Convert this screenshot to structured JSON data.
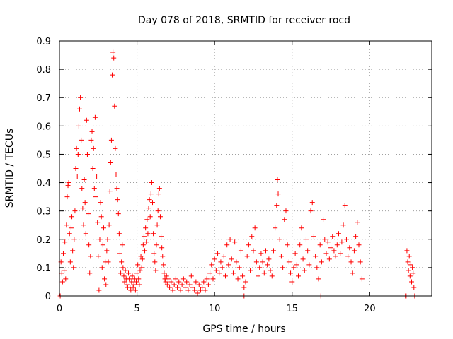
{
  "chart_data": {
    "type": "scatter",
    "title": "Day 078 of 2018, SRMTID for receiver rocd",
    "xlabel": "GPS time / hours",
    "ylabel": "SRMTID / TECUs",
    "xlim": [
      0,
      24
    ],
    "ylim": [
      0,
      0.9
    ],
    "xticks": [
      0,
      5,
      10,
      15,
      20
    ],
    "yticks": [
      0,
      0.1,
      0.2,
      0.3,
      0.4,
      0.5,
      0.6,
      0.7,
      0.8,
      0.9
    ],
    "xtick_labels": [
      "0",
      "5",
      "10",
      "15",
      "20"
    ],
    "ytick_labels": [
      "0",
      "0.1",
      "0.2",
      "0.3",
      "0.4",
      "0.5",
      "0.6",
      "0.7",
      "0.8",
      "0.9"
    ],
    "grid": true,
    "marker": "+",
    "color": "#ff0000",
    "series": [
      {
        "name": "SRMTID",
        "points": [
          [
            0.05,
            0.0
          ],
          [
            0.1,
            0.12
          ],
          [
            0.15,
            0.08
          ],
          [
            0.2,
            0.05
          ],
          [
            0.25,
            0.15
          ],
          [
            0.3,
            0.09
          ],
          [
            0.35,
            0.19
          ],
          [
            0.4,
            0.06
          ],
          [
            0.45,
            0.25
          ],
          [
            0.5,
            0.35
          ],
          [
            0.55,
            0.39
          ],
          [
            0.6,
            0.4
          ],
          [
            0.65,
            0.22
          ],
          [
            0.7,
            0.12
          ],
          [
            0.75,
            0.24
          ],
          [
            0.8,
            0.28
          ],
          [
            0.85,
            0.16
          ],
          [
            0.9,
            0.1
          ],
          [
            0.95,
            0.2
          ],
          [
            1.0,
            0.3
          ],
          [
            1.05,
            0.45
          ],
          [
            1.1,
            0.52
          ],
          [
            1.15,
            0.42
          ],
          [
            1.2,
            0.5
          ],
          [
            1.25,
            0.6
          ],
          [
            1.3,
            0.66
          ],
          [
            1.35,
            0.7
          ],
          [
            1.4,
            0.55
          ],
          [
            1.45,
            0.38
          ],
          [
            1.5,
            0.31
          ],
          [
            1.55,
            0.25
          ],
          [
            1.6,
            0.41
          ],
          [
            1.65,
            0.33
          ],
          [
            1.7,
            0.22
          ],
          [
            1.75,
            0.62
          ],
          [
            1.8,
            0.5
          ],
          [
            1.85,
            0.29
          ],
          [
            1.9,
            0.18
          ],
          [
            1.95,
            0.08
          ],
          [
            2.0,
            0.14
          ],
          [
            2.05,
            0.55
          ],
          [
            2.1,
            0.58
          ],
          [
            2.15,
            0.45
          ],
          [
            2.2,
            0.52
          ],
          [
            2.25,
            0.38
          ],
          [
            2.3,
            0.63
          ],
          [
            2.35,
            0.35
          ],
          [
            2.4,
            0.42
          ],
          [
            2.45,
            0.26
          ],
          [
            2.5,
            0.14
          ],
          [
            2.55,
            0.02
          ],
          [
            2.6,
            0.2
          ],
          [
            2.65,
            0.33
          ],
          [
            2.7,
            0.28
          ],
          [
            2.75,
            0.1
          ],
          [
            2.8,
            0.18
          ],
          [
            2.85,
            0.24
          ],
          [
            2.9,
            0.06
          ],
          [
            2.95,
            0.12
          ],
          [
            3.0,
            0.04
          ],
          [
            3.05,
            0.16
          ],
          [
            3.1,
            0.2
          ],
          [
            3.15,
            0.12
          ],
          [
            3.2,
            0.25
          ],
          [
            3.25,
            0.37
          ],
          [
            3.3,
            0.47
          ],
          [
            3.35,
            0.55
          ],
          [
            3.4,
            0.78
          ],
          [
            3.45,
            0.86
          ],
          [
            3.5,
            0.84
          ],
          [
            3.55,
            0.67
          ],
          [
            3.6,
            0.52
          ],
          [
            3.65,
            0.43
          ],
          [
            3.7,
            0.38
          ],
          [
            3.75,
            0.34
          ],
          [
            3.8,
            0.29
          ],
          [
            3.85,
            0.22
          ],
          [
            3.9,
            0.15
          ],
          [
            3.95,
            0.08
          ],
          [
            4.0,
            0.12
          ],
          [
            4.05,
            0.18
          ],
          [
            4.1,
            0.1
          ],
          [
            4.15,
            0.07
          ],
          [
            4.2,
            0.05
          ],
          [
            4.25,
            0.09
          ],
          [
            4.3,
            0.06
          ],
          [
            4.35,
            0.04
          ],
          [
            4.4,
            0.03
          ],
          [
            4.45,
            0.08
          ],
          [
            4.5,
            0.06
          ],
          [
            4.55,
            0.03
          ],
          [
            4.6,
            0.02
          ],
          [
            4.65,
            0.05
          ],
          [
            4.7,
            0.07
          ],
          [
            4.75,
            0.03
          ],
          [
            4.8,
            0.04
          ],
          [
            4.85,
            0.06
          ],
          [
            4.9,
            0.02
          ],
          [
            4.95,
            0.05
          ],
          [
            5.0,
            0.08
          ],
          [
            5.05,
            0.11
          ],
          [
            5.1,
            0.06
          ],
          [
            5.15,
            0.04
          ],
          [
            5.2,
            0.09
          ],
          [
            5.25,
            0.14
          ],
          [
            5.3,
            0.1
          ],
          [
            5.35,
            0.13
          ],
          [
            5.4,
            0.18
          ],
          [
            5.45,
            0.21
          ],
          [
            5.5,
            0.16
          ],
          [
            5.55,
            0.24
          ],
          [
            5.6,
            0.19
          ],
          [
            5.65,
            0.27
          ],
          [
            5.7,
            0.22
          ],
          [
            5.75,
            0.31
          ],
          [
            5.8,
            0.34
          ],
          [
            5.85,
            0.28
          ],
          [
            5.9,
            0.36
          ],
          [
            5.95,
            0.4
          ],
          [
            6.0,
            0.33
          ],
          [
            6.05,
            0.22
          ],
          [
            6.1,
            0.15
          ],
          [
            6.15,
            0.12
          ],
          [
            6.2,
            0.09
          ],
          [
            6.25,
            0.18
          ],
          [
            6.3,
            0.25
          ],
          [
            6.35,
            0.3
          ],
          [
            6.4,
            0.36
          ],
          [
            6.45,
            0.38
          ],
          [
            6.5,
            0.28
          ],
          [
            6.55,
            0.21
          ],
          [
            6.6,
            0.17
          ],
          [
            6.65,
            0.14
          ],
          [
            6.7,
            0.11
          ],
          [
            6.75,
            0.08
          ],
          [
            6.8,
            0.06
          ],
          [
            6.85,
            0.05
          ],
          [
            6.9,
            0.07
          ],
          [
            6.95,
            0.04
          ],
          [
            7.0,
            0.06
          ],
          [
            7.1,
            0.03
          ],
          [
            7.2,
            0.05
          ],
          [
            7.3,
            0.02
          ],
          [
            7.4,
            0.04
          ],
          [
            7.5,
            0.06
          ],
          [
            7.6,
            0.03
          ],
          [
            7.7,
            0.05
          ],
          [
            7.8,
            0.02
          ],
          [
            7.9,
            0.04
          ],
          [
            8.0,
            0.06
          ],
          [
            8.1,
            0.03
          ],
          [
            8.2,
            0.05
          ],
          [
            8.3,
            0.02
          ],
          [
            8.4,
            0.04
          ],
          [
            8.5,
            0.07
          ],
          [
            8.6,
            0.03
          ],
          [
            8.7,
            0.02
          ],
          [
            8.8,
            0.05
          ],
          [
            8.9,
            0.01
          ],
          [
            9.0,
            0.04
          ],
          [
            9.1,
            0.02
          ],
          [
            9.2,
            0.03
          ],
          [
            9.3,
            0.05
          ],
          [
            9.4,
            0.02
          ],
          [
            9.5,
            0.06
          ],
          [
            9.6,
            0.04
          ],
          [
            9.7,
            0.08
          ],
          [
            9.8,
            0.11
          ],
          [
            9.9,
            0.06
          ],
          [
            10.0,
            0.13
          ],
          [
            10.1,
            0.09
          ],
          [
            10.2,
            0.15
          ],
          [
            10.3,
            0.08
          ],
          [
            10.4,
            0.12
          ],
          [
            10.5,
            0.1
          ],
          [
            10.6,
            0.14
          ],
          [
            10.7,
            0.07
          ],
          [
            10.8,
            0.18
          ],
          [
            10.9,
            0.11
          ],
          [
            11.0,
            0.2
          ],
          [
            11.1,
            0.13
          ],
          [
            11.2,
            0.08
          ],
          [
            11.3,
            0.19
          ],
          [
            11.4,
            0.12
          ],
          [
            11.5,
            0.06
          ],
          [
            11.6,
            0.1
          ],
          [
            11.7,
            0.16
          ],
          [
            11.8,
            0.07
          ],
          [
            11.9,
            0.03
          ],
          [
            12.0,
            0.05
          ],
          [
            12.1,
            0.14
          ],
          [
            12.2,
            0.18
          ],
          [
            12.3,
            0.09
          ],
          [
            12.4,
            0.21
          ],
          [
            12.5,
            0.16
          ],
          [
            12.6,
            0.24
          ],
          [
            12.7,
            0.12
          ],
          [
            12.8,
            0.07
          ],
          [
            12.9,
            0.1
          ],
          [
            13.0,
            0.15
          ],
          [
            13.1,
            0.12
          ],
          [
            13.2,
            0.08
          ],
          [
            13.3,
            0.16
          ],
          [
            13.4,
            0.11
          ],
          [
            13.5,
            0.13
          ],
          [
            13.6,
            0.09
          ],
          [
            13.7,
            0.07
          ],
          [
            13.8,
            0.16
          ],
          [
            13.9,
            0.24
          ],
          [
            14.0,
            0.32
          ],
          [
            14.05,
            0.41
          ],
          [
            14.1,
            0.36
          ],
          [
            14.2,
            0.2
          ],
          [
            14.3,
            0.14
          ],
          [
            14.4,
            0.1
          ],
          [
            14.5,
            0.27
          ],
          [
            14.6,
            0.3
          ],
          [
            14.7,
            0.18
          ],
          [
            14.8,
            0.12
          ],
          [
            14.9,
            0.08
          ],
          [
            15.0,
            0.05
          ],
          [
            15.1,
            0.1
          ],
          [
            15.2,
            0.15
          ],
          [
            15.3,
            0.11
          ],
          [
            15.4,
            0.07
          ],
          [
            15.5,
            0.18
          ],
          [
            15.6,
            0.24
          ],
          [
            15.7,
            0.13
          ],
          [
            15.8,
            0.09
          ],
          [
            15.9,
            0.2
          ],
          [
            16.0,
            0.16
          ],
          [
            16.1,
            0.11
          ],
          [
            16.2,
            0.3
          ],
          [
            16.3,
            0.33
          ],
          [
            16.4,
            0.21
          ],
          [
            16.5,
            0.14
          ],
          [
            16.6,
            0.1
          ],
          [
            16.7,
            0.06
          ],
          [
            16.8,
            0.18
          ],
          [
            16.9,
            0.12
          ],
          [
            17.0,
            0.27
          ],
          [
            17.1,
            0.2
          ],
          [
            17.2,
            0.15
          ],
          [
            17.3,
            0.19
          ],
          [
            17.4,
            0.13
          ],
          [
            17.5,
            0.17
          ],
          [
            17.6,
            0.21
          ],
          [
            17.7,
            0.16
          ],
          [
            17.8,
            0.14
          ],
          [
            17.9,
            0.18
          ],
          [
            18.0,
            0.22
          ],
          [
            18.1,
            0.15
          ],
          [
            18.2,
            0.19
          ],
          [
            18.3,
            0.25
          ],
          [
            18.4,
            0.32
          ],
          [
            18.5,
            0.2
          ],
          [
            18.6,
            0.14
          ],
          [
            18.7,
            0.17
          ],
          [
            18.8,
            0.12
          ],
          [
            18.9,
            0.08
          ],
          [
            19.0,
            0.16
          ],
          [
            19.1,
            0.21
          ],
          [
            19.2,
            0.26
          ],
          [
            19.3,
            0.18
          ],
          [
            19.4,
            0.12
          ],
          [
            19.5,
            0.06
          ],
          [
            22.4,
            0.16
          ],
          [
            22.45,
            0.12
          ],
          [
            22.5,
            0.09
          ],
          [
            22.55,
            0.14
          ],
          [
            22.6,
            0.07
          ],
          [
            22.65,
            0.11
          ],
          [
            22.7,
            0.05
          ],
          [
            22.75,
            0.1
          ],
          [
            22.8,
            0.08
          ],
          [
            22.85,
            0.03
          ],
          [
            11.9,
            0.0
          ],
          [
            16.85,
            0.0
          ],
          [
            22.3,
            0.0
          ],
          [
            22.35,
            0.0
          ],
          [
            22.9,
            0.0
          ]
        ]
      }
    ]
  }
}
